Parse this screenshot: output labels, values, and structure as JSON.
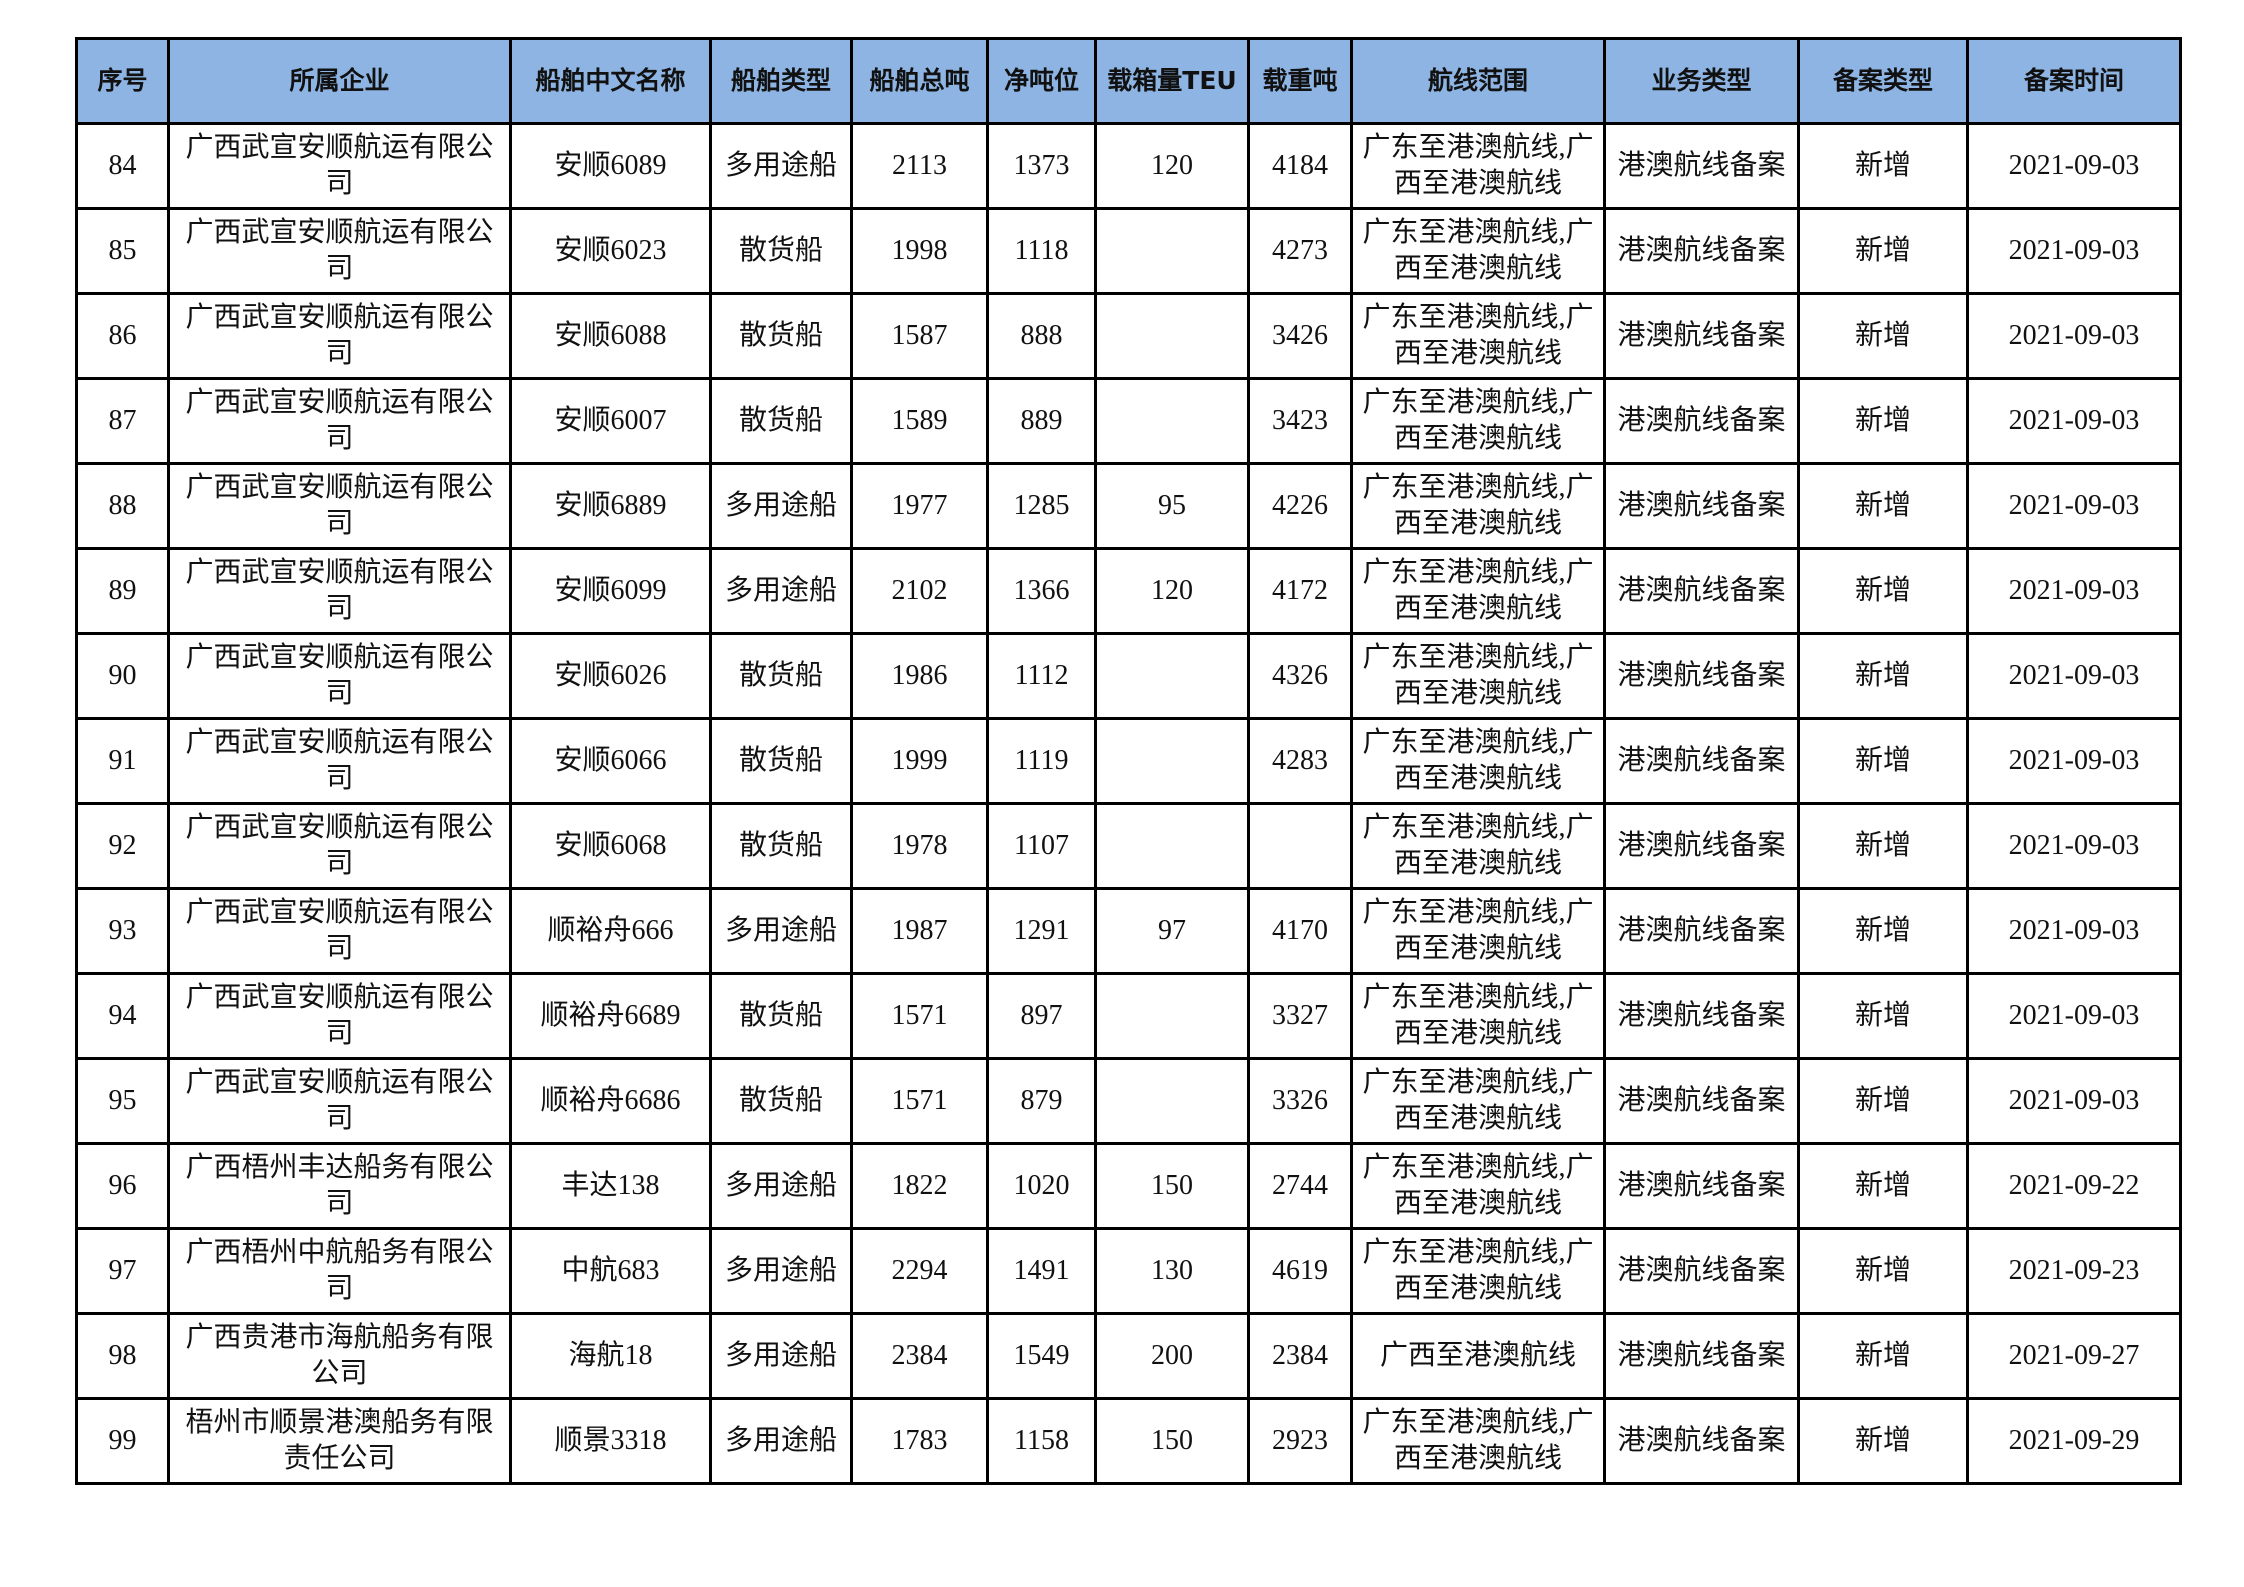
{
  "colors": {
    "header_bg": "#8db4e2",
    "border": "#000000"
  },
  "headers": [
    "序号",
    "所属企业",
    "船舶中文名称",
    "船舶类型",
    "船舶总吨",
    "净吨位",
    "载箱量TEU",
    "载重吨",
    "航线范围",
    "业务类型",
    "备案类型",
    "备案时间"
  ],
  "rows": [
    {
      "no": "84",
      "company": "广西武宣安顺航运有限公司",
      "ship": "安顺6089",
      "type": "多用途船",
      "gt": "2113",
      "nt": "1373",
      "teu": "120",
      "dwt": "4184",
      "route": "广东至港澳航线,广西至港澳航线",
      "biz": "港澳航线备案",
      "filing": "新增",
      "date": "2021-09-03"
    },
    {
      "no": "85",
      "company": "广西武宣安顺航运有限公司",
      "ship": "安顺6023",
      "type": "散货船",
      "gt": "1998",
      "nt": "1118",
      "teu": "",
      "dwt": "4273",
      "route": "广东至港澳航线,广西至港澳航线",
      "biz": "港澳航线备案",
      "filing": "新增",
      "date": "2021-09-03"
    },
    {
      "no": "86",
      "company": "广西武宣安顺航运有限公司",
      "ship": "安顺6088",
      "type": "散货船",
      "gt": "1587",
      "nt": "888",
      "teu": "",
      "dwt": "3426",
      "route": "广东至港澳航线,广西至港澳航线",
      "biz": "港澳航线备案",
      "filing": "新增",
      "date": "2021-09-03"
    },
    {
      "no": "87",
      "company": "广西武宣安顺航运有限公司",
      "ship": "安顺6007",
      "type": "散货船",
      "gt": "1589",
      "nt": "889",
      "teu": "",
      "dwt": "3423",
      "route": "广东至港澳航线,广西至港澳航线",
      "biz": "港澳航线备案",
      "filing": "新增",
      "date": "2021-09-03"
    },
    {
      "no": "88",
      "company": "广西武宣安顺航运有限公司",
      "ship": "安顺6889",
      "type": "多用途船",
      "gt": "1977",
      "nt": "1285",
      "teu": "95",
      "dwt": "4226",
      "route": "广东至港澳航线,广西至港澳航线",
      "biz": "港澳航线备案",
      "filing": "新增",
      "date": "2021-09-03"
    },
    {
      "no": "89",
      "company": "广西武宣安顺航运有限公司",
      "ship": "安顺6099",
      "type": "多用途船",
      "gt": "2102",
      "nt": "1366",
      "teu": "120",
      "dwt": "4172",
      "route": "广东至港澳航线,广西至港澳航线",
      "biz": "港澳航线备案",
      "filing": "新增",
      "date": "2021-09-03"
    },
    {
      "no": "90",
      "company": "广西武宣安顺航运有限公司",
      "ship": "安顺6026",
      "type": "散货船",
      "gt": "1986",
      "nt": "1112",
      "teu": "",
      "dwt": "4326",
      "route": "广东至港澳航线,广西至港澳航线",
      "biz": "港澳航线备案",
      "filing": "新增",
      "date": "2021-09-03"
    },
    {
      "no": "91",
      "company": "广西武宣安顺航运有限公司",
      "ship": "安顺6066",
      "type": "散货船",
      "gt": "1999",
      "nt": "1119",
      "teu": "",
      "dwt": "4283",
      "route": "广东至港澳航线,广西至港澳航线",
      "biz": "港澳航线备案",
      "filing": "新增",
      "date": "2021-09-03"
    },
    {
      "no": "92",
      "company": "广西武宣安顺航运有限公司",
      "ship": "安顺6068",
      "type": "散货船",
      "gt": "1978",
      "nt": "1107",
      "teu": "",
      "dwt": "",
      "route": "广东至港澳航线,广西至港澳航线",
      "biz": "港澳航线备案",
      "filing": "新增",
      "date": "2021-09-03"
    },
    {
      "no": "93",
      "company": "广西武宣安顺航运有限公司",
      "ship": "顺裕舟666",
      "type": "多用途船",
      "gt": "1987",
      "nt": "1291",
      "teu": "97",
      "dwt": "4170",
      "route": "广东至港澳航线,广西至港澳航线",
      "biz": "港澳航线备案",
      "filing": "新增",
      "date": "2021-09-03"
    },
    {
      "no": "94",
      "company": "广西武宣安顺航运有限公司",
      "ship": "顺裕舟6689",
      "type": "散货船",
      "gt": "1571",
      "nt": "897",
      "teu": "",
      "dwt": "3327",
      "route": "广东至港澳航线,广西至港澳航线",
      "biz": "港澳航线备案",
      "filing": "新增",
      "date": "2021-09-03"
    },
    {
      "no": "95",
      "company": "广西武宣安顺航运有限公司",
      "ship": "顺裕舟6686",
      "type": "散货船",
      "gt": "1571",
      "nt": "879",
      "teu": "",
      "dwt": "3326",
      "route": "广东至港澳航线,广西至港澳航线",
      "biz": "港澳航线备案",
      "filing": "新增",
      "date": "2021-09-03"
    },
    {
      "no": "96",
      "company": "广西梧州丰达船务有限公司",
      "ship": "丰达138",
      "type": "多用途船",
      "gt": "1822",
      "nt": "1020",
      "teu": "150",
      "dwt": "2744",
      "route": "广东至港澳航线,广西至港澳航线",
      "biz": "港澳航线备案",
      "filing": "新增",
      "date": "2021-09-22"
    },
    {
      "no": "97",
      "company": "广西梧州中航船务有限公司",
      "ship": "中航683",
      "type": "多用途船",
      "gt": "2294",
      "nt": "1491",
      "teu": "130",
      "dwt": "4619",
      "route": "广东至港澳航线,广西至港澳航线",
      "biz": "港澳航线备案",
      "filing": "新增",
      "date": "2021-09-23"
    },
    {
      "no": "98",
      "company": "广西贵港市海航船务有限公司",
      "ship": "海航18",
      "type": "多用途船",
      "gt": "2384",
      "nt": "1549",
      "teu": "200",
      "dwt": "2384",
      "route": "广西至港澳航线",
      "biz": "港澳航线备案",
      "filing": "新增",
      "date": "2021-09-27"
    },
    {
      "no": "99",
      "company": "梧州市顺景港澳船务有限责任公司",
      "ship": "顺景3318",
      "type": "多用途船",
      "gt": "1783",
      "nt": "1158",
      "teu": "150",
      "dwt": "2923",
      "route": "广东至港澳航线,广西至港澳航线",
      "biz": "港澳航线备案",
      "filing": "新增",
      "date": "2021-09-29"
    }
  ]
}
